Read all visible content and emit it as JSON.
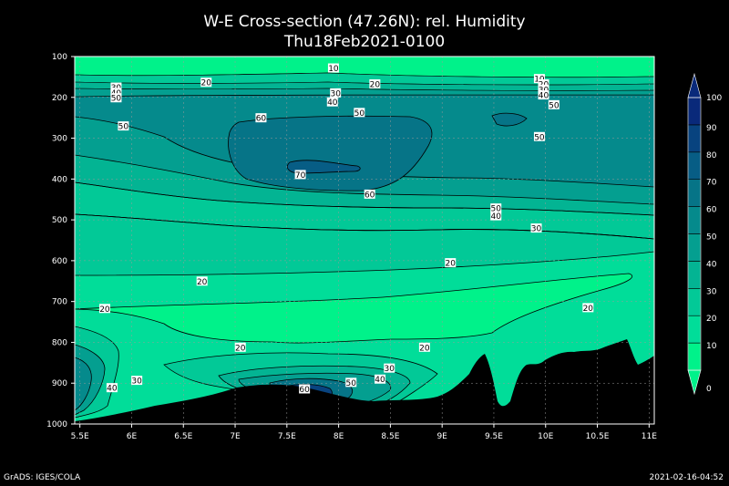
{
  "title": "W-E Cross-section (47.26N): rel. Humidity",
  "subtitle": "Thu18Feb2021-0100",
  "footer_left": "GrADS: IGES/COLA",
  "footer_right": "2021-02-16-04:52",
  "chart_data": {
    "type": "contour",
    "x_ticks": [
      "5.5E",
      "6E",
      "6.5E",
      "7E",
      "7.5E",
      "8E",
      "8.5E",
      "9E",
      "9.5E",
      "10E",
      "10.5E",
      "11E"
    ],
    "x_values": [
      5.5,
      6,
      6.5,
      7,
      7.5,
      8,
      8.5,
      9,
      9.5,
      10,
      10.5,
      11
    ],
    "y_ticks": [
      "100",
      "200",
      "300",
      "400",
      "500",
      "600",
      "700",
      "800",
      "900",
      "1000"
    ],
    "y_values": [
      100,
      200,
      300,
      400,
      500,
      600,
      700,
      800,
      900,
      1000
    ],
    "xlim": [
      5.45,
      11.05
    ],
    "ylim": [
      100,
      1000
    ],
    "y_inverted": true,
    "grid": true,
    "colorbar": {
      "levels": [
        "0",
        "10",
        "20",
        "30",
        "40",
        "50",
        "60",
        "70",
        "80",
        "90",
        "100"
      ],
      "colors": [
        "#00f28a",
        "#01dd99",
        "#02c997",
        "#03b493",
        "#049f90",
        "#058a8c",
        "#067487",
        "#075d85",
        "#08437f",
        "#09297a"
      ]
    },
    "contour_labels": [
      {
        "text": "10",
        "lon": 7.95,
        "p": 128
      },
      {
        "text": "20",
        "lon": 6.72,
        "p": 163
      },
      {
        "text": "20",
        "lon": 8.35,
        "p": 167
      },
      {
        "text": "30",
        "lon": 5.85,
        "p": 175
      },
      {
        "text": "40",
        "lon": 5.85,
        "p": 188
      },
      {
        "text": "50",
        "lon": 5.85,
        "p": 201
      },
      {
        "text": "30",
        "lon": 7.97,
        "p": 189
      },
      {
        "text": "40",
        "lon": 7.94,
        "p": 211
      },
      {
        "text": "50",
        "lon": 8.2,
        "p": 237
      },
      {
        "text": "10",
        "lon": 9.94,
        "p": 154
      },
      {
        "text": "20",
        "lon": 9.98,
        "p": 167
      },
      {
        "text": "30",
        "lon": 9.98,
        "p": 180
      },
      {
        "text": "40",
        "lon": 9.98,
        "p": 194
      },
      {
        "text": "50",
        "lon": 10.08,
        "p": 218
      },
      {
        "text": "50",
        "lon": 5.92,
        "p": 270
      },
      {
        "text": "60",
        "lon": 7.25,
        "p": 250
      },
      {
        "text": "50",
        "lon": 9.94,
        "p": 296
      },
      {
        "text": "70",
        "lon": 7.63,
        "p": 389
      },
      {
        "text": "60",
        "lon": 8.3,
        "p": 437
      },
      {
        "text": "50",
        "lon": 9.52,
        "p": 471
      },
      {
        "text": "40",
        "lon": 9.52,
        "p": 490
      },
      {
        "text": "30",
        "lon": 9.91,
        "p": 520
      },
      {
        "text": "20",
        "lon": 9.08,
        "p": 605
      },
      {
        "text": "20",
        "lon": 6.68,
        "p": 650
      },
      {
        "text": "20",
        "lon": 5.74,
        "p": 717
      },
      {
        "text": "20",
        "lon": 10.41,
        "p": 715
      },
      {
        "text": "20",
        "lon": 7.05,
        "p": 812
      },
      {
        "text": "20",
        "lon": 8.83,
        "p": 812
      },
      {
        "text": "30",
        "lon": 8.49,
        "p": 863
      },
      {
        "text": "30",
        "lon": 6.05,
        "p": 893
      },
      {
        "text": "40",
        "lon": 8.4,
        "p": 890
      },
      {
        "text": "40",
        "lon": 5.81,
        "p": 911
      },
      {
        "text": "50",
        "lon": 8.12,
        "p": 898
      },
      {
        "text": "60",
        "lon": 7.67,
        "p": 914
      }
    ]
  }
}
